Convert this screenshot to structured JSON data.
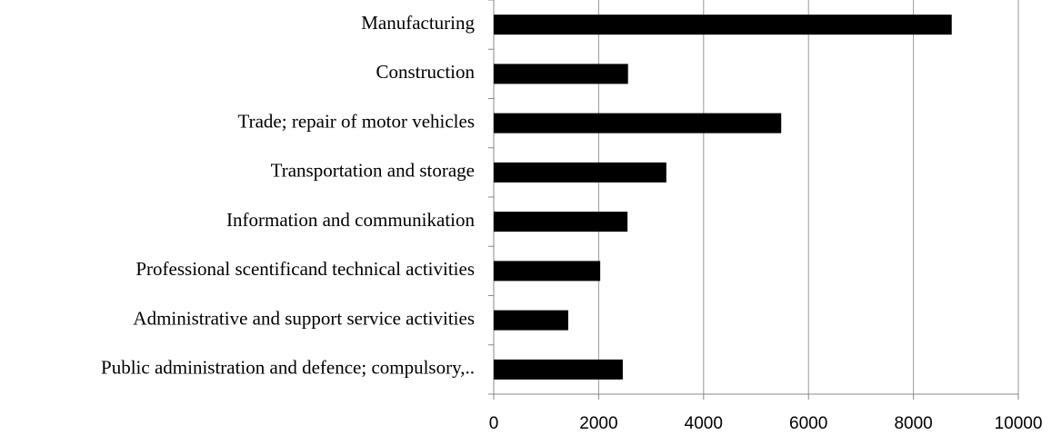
{
  "chart_data": {
    "type": "bar",
    "orientation": "horizontal",
    "categories": [
      "Manufacturing",
      "Construction",
      "Trade; repair of motor vehicles",
      "Transportation and storage",
      "Information and communikation",
      "Professional scentificand technical activities",
      "Administrative and support service activities",
      "Public administration and defence; compulsory,.."
    ],
    "values": [
      8730,
      2560,
      5480,
      3290,
      2550,
      2030,
      1420,
      2460
    ],
    "color": "#000000",
    "xlim": [
      0,
      10000
    ],
    "xticks": [
      0,
      2000,
      4000,
      6000,
      8000,
      10000
    ],
    "grid": true
  }
}
